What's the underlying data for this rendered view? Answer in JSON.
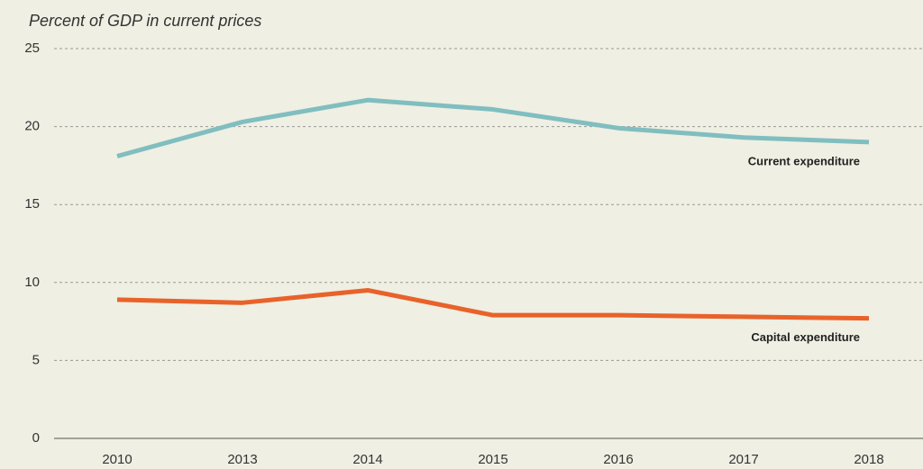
{
  "chart_data": {
    "type": "line",
    "subtitle": "Percent of GDP in current prices",
    "categories": [
      "2010",
      "2013",
      "2014",
      "2015",
      "2016",
      "2017",
      "2018"
    ],
    "series": [
      {
        "name": "Current expenditure",
        "color": "#80bec0",
        "values": [
          18.1,
          20.3,
          21.7,
          21.1,
          19.9,
          19.3,
          19.0
        ]
      },
      {
        "name": "Capital expenditure",
        "color": "#e8622a",
        "values": [
          8.9,
          8.7,
          9.5,
          7.9,
          7.9,
          7.8,
          7.7
        ]
      }
    ],
    "ylim": [
      0,
      25
    ],
    "yticks": [
      0,
      5,
      10,
      15,
      20,
      25
    ],
    "grid": true
  }
}
